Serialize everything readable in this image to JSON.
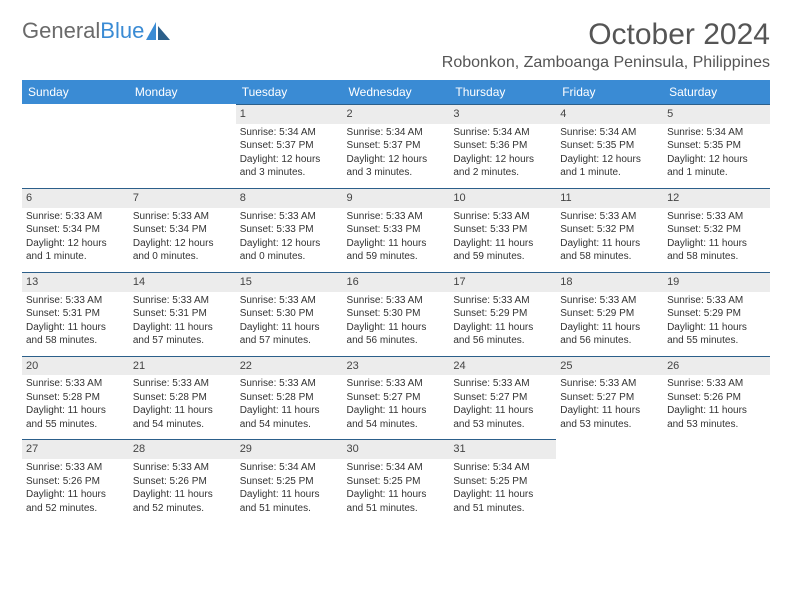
{
  "brand": {
    "part1": "General",
    "part2": "Blue"
  },
  "title": "October 2024",
  "location": "Robonkon, Zamboanga Peninsula, Philippines",
  "colors": {
    "header_bg": "#3a8bd4",
    "header_text": "#ffffff",
    "daynum_bg": "#ececec",
    "daynum_border": "#2c5f8a",
    "body_text": "#333333",
    "title_text": "#555555",
    "logo_gray": "#6a6a6a"
  },
  "days_of_week": [
    "Sunday",
    "Monday",
    "Tuesday",
    "Wednesday",
    "Thursday",
    "Friday",
    "Saturday"
  ],
  "weeks": [
    [
      {
        "n": "",
        "sr": "",
        "ss": "",
        "dl": ""
      },
      {
        "n": "",
        "sr": "",
        "ss": "",
        "dl": ""
      },
      {
        "n": "1",
        "sr": "Sunrise: 5:34 AM",
        "ss": "Sunset: 5:37 PM",
        "dl": "Daylight: 12 hours and 3 minutes."
      },
      {
        "n": "2",
        "sr": "Sunrise: 5:34 AM",
        "ss": "Sunset: 5:37 PM",
        "dl": "Daylight: 12 hours and 3 minutes."
      },
      {
        "n": "3",
        "sr": "Sunrise: 5:34 AM",
        "ss": "Sunset: 5:36 PM",
        "dl": "Daylight: 12 hours and 2 minutes."
      },
      {
        "n": "4",
        "sr": "Sunrise: 5:34 AM",
        "ss": "Sunset: 5:35 PM",
        "dl": "Daylight: 12 hours and 1 minute."
      },
      {
        "n": "5",
        "sr": "Sunrise: 5:34 AM",
        "ss": "Sunset: 5:35 PM",
        "dl": "Daylight: 12 hours and 1 minute."
      }
    ],
    [
      {
        "n": "6",
        "sr": "Sunrise: 5:33 AM",
        "ss": "Sunset: 5:34 PM",
        "dl": "Daylight: 12 hours and 1 minute."
      },
      {
        "n": "7",
        "sr": "Sunrise: 5:33 AM",
        "ss": "Sunset: 5:34 PM",
        "dl": "Daylight: 12 hours and 0 minutes."
      },
      {
        "n": "8",
        "sr": "Sunrise: 5:33 AM",
        "ss": "Sunset: 5:33 PM",
        "dl": "Daylight: 12 hours and 0 minutes."
      },
      {
        "n": "9",
        "sr": "Sunrise: 5:33 AM",
        "ss": "Sunset: 5:33 PM",
        "dl": "Daylight: 11 hours and 59 minutes."
      },
      {
        "n": "10",
        "sr": "Sunrise: 5:33 AM",
        "ss": "Sunset: 5:33 PM",
        "dl": "Daylight: 11 hours and 59 minutes."
      },
      {
        "n": "11",
        "sr": "Sunrise: 5:33 AM",
        "ss": "Sunset: 5:32 PM",
        "dl": "Daylight: 11 hours and 58 minutes."
      },
      {
        "n": "12",
        "sr": "Sunrise: 5:33 AM",
        "ss": "Sunset: 5:32 PM",
        "dl": "Daylight: 11 hours and 58 minutes."
      }
    ],
    [
      {
        "n": "13",
        "sr": "Sunrise: 5:33 AM",
        "ss": "Sunset: 5:31 PM",
        "dl": "Daylight: 11 hours and 58 minutes."
      },
      {
        "n": "14",
        "sr": "Sunrise: 5:33 AM",
        "ss": "Sunset: 5:31 PM",
        "dl": "Daylight: 11 hours and 57 minutes."
      },
      {
        "n": "15",
        "sr": "Sunrise: 5:33 AM",
        "ss": "Sunset: 5:30 PM",
        "dl": "Daylight: 11 hours and 57 minutes."
      },
      {
        "n": "16",
        "sr": "Sunrise: 5:33 AM",
        "ss": "Sunset: 5:30 PM",
        "dl": "Daylight: 11 hours and 56 minutes."
      },
      {
        "n": "17",
        "sr": "Sunrise: 5:33 AM",
        "ss": "Sunset: 5:29 PM",
        "dl": "Daylight: 11 hours and 56 minutes."
      },
      {
        "n": "18",
        "sr": "Sunrise: 5:33 AM",
        "ss": "Sunset: 5:29 PM",
        "dl": "Daylight: 11 hours and 56 minutes."
      },
      {
        "n": "19",
        "sr": "Sunrise: 5:33 AM",
        "ss": "Sunset: 5:29 PM",
        "dl": "Daylight: 11 hours and 55 minutes."
      }
    ],
    [
      {
        "n": "20",
        "sr": "Sunrise: 5:33 AM",
        "ss": "Sunset: 5:28 PM",
        "dl": "Daylight: 11 hours and 55 minutes."
      },
      {
        "n": "21",
        "sr": "Sunrise: 5:33 AM",
        "ss": "Sunset: 5:28 PM",
        "dl": "Daylight: 11 hours and 54 minutes."
      },
      {
        "n": "22",
        "sr": "Sunrise: 5:33 AM",
        "ss": "Sunset: 5:28 PM",
        "dl": "Daylight: 11 hours and 54 minutes."
      },
      {
        "n": "23",
        "sr": "Sunrise: 5:33 AM",
        "ss": "Sunset: 5:27 PM",
        "dl": "Daylight: 11 hours and 54 minutes."
      },
      {
        "n": "24",
        "sr": "Sunrise: 5:33 AM",
        "ss": "Sunset: 5:27 PM",
        "dl": "Daylight: 11 hours and 53 minutes."
      },
      {
        "n": "25",
        "sr": "Sunrise: 5:33 AM",
        "ss": "Sunset: 5:27 PM",
        "dl": "Daylight: 11 hours and 53 minutes."
      },
      {
        "n": "26",
        "sr": "Sunrise: 5:33 AM",
        "ss": "Sunset: 5:26 PM",
        "dl": "Daylight: 11 hours and 53 minutes."
      }
    ],
    [
      {
        "n": "27",
        "sr": "Sunrise: 5:33 AM",
        "ss": "Sunset: 5:26 PM",
        "dl": "Daylight: 11 hours and 52 minutes."
      },
      {
        "n": "28",
        "sr": "Sunrise: 5:33 AM",
        "ss": "Sunset: 5:26 PM",
        "dl": "Daylight: 11 hours and 52 minutes."
      },
      {
        "n": "29",
        "sr": "Sunrise: 5:34 AM",
        "ss": "Sunset: 5:25 PM",
        "dl": "Daylight: 11 hours and 51 minutes."
      },
      {
        "n": "30",
        "sr": "Sunrise: 5:34 AM",
        "ss": "Sunset: 5:25 PM",
        "dl": "Daylight: 11 hours and 51 minutes."
      },
      {
        "n": "31",
        "sr": "Sunrise: 5:34 AM",
        "ss": "Sunset: 5:25 PM",
        "dl": "Daylight: 11 hours and 51 minutes."
      },
      {
        "n": "",
        "sr": "",
        "ss": "",
        "dl": ""
      },
      {
        "n": "",
        "sr": "",
        "ss": "",
        "dl": ""
      }
    ]
  ]
}
